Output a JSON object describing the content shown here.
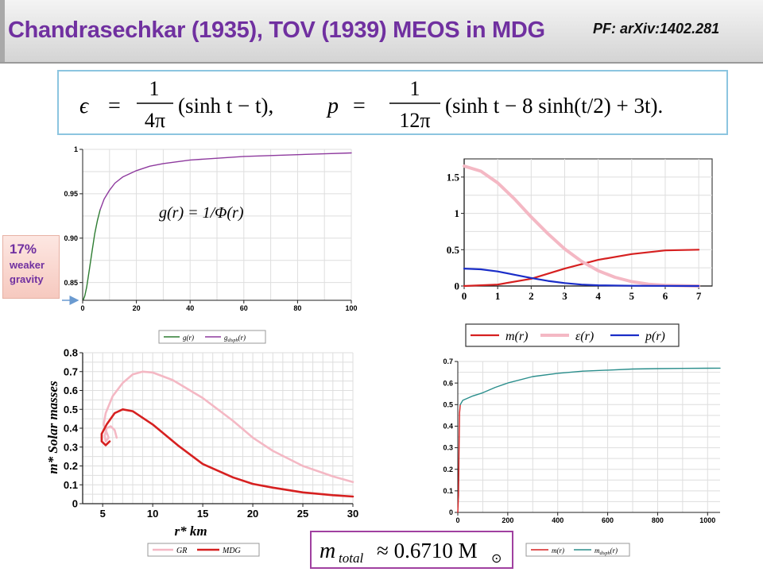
{
  "header": {
    "title": "Chandrasechkar (1935), TOV (1939) MEOS in MDG",
    "reference": "PF: arXiv:1402.281"
  },
  "equation": {
    "eps_sym": "ϵ",
    "eq": "=",
    "one": "1",
    "four_pi": "4π",
    "eps_rhs": "(sinh t − t),",
    "p_sym": "p",
    "twelve_pi": "12π",
    "p_rhs": "(sinh t − 8 sinh(t/2) + 3t)."
  },
  "mtotal": {
    "lhs": "m",
    "sub": "total",
    "rhs": "≈ 0.6710 M",
    "sun": "⊙"
  },
  "callout": {
    "percent": "17%",
    "line1": "weaker",
    "line2": "gravity"
  },
  "colors": {
    "title": "#7030a0",
    "gr_green": "#2e7d32",
    "g_purple": "#8e3a9e",
    "mass_red": "#d62020",
    "eps_pink": "#f4b8c4",
    "p_blue": "#1a2dc8",
    "teal": "#2a8e8c"
  },
  "chart_data": [
    {
      "type": "line",
      "id": "g-plot",
      "annotation": "g(r) = 1/Φ(r)",
      "xlim": [
        0,
        100
      ],
      "ylim": [
        0.83,
        1.0
      ],
      "x_ticks": [
        "0",
        "20",
        "40",
        "60",
        "80",
        "100"
      ],
      "y_ticks": [
        "0.85",
        "0.90",
        "0.95",
        "1"
      ],
      "legend": [
        "g(r)",
        "g_disph(r)"
      ],
      "series": [
        {
          "name": "g(r)",
          "points": [
            [
              0.3,
              0.831
            ],
            [
              0.8,
              0.835
            ],
            [
              1.5,
              0.845
            ],
            [
              2.5,
              0.865
            ],
            [
              3.5,
              0.885
            ],
            [
              4.5,
              0.905
            ],
            [
              5.5,
              0.92
            ],
            [
              6.5,
              0.932
            ]
          ]
        },
        {
          "name": "g_disph(r)",
          "points": [
            [
              6.5,
              0.932
            ],
            [
              8,
              0.944
            ],
            [
              10,
              0.954
            ],
            [
              12,
              0.962
            ],
            [
              15,
              0.969
            ],
            [
              20,
              0.976
            ],
            [
              25,
              0.981
            ],
            [
              30,
              0.984
            ],
            [
              40,
              0.988
            ],
            [
              50,
              0.99
            ],
            [
              60,
              0.992
            ],
            [
              70,
              0.993
            ],
            [
              80,
              0.994
            ],
            [
              90,
              0.995
            ],
            [
              100,
              0.996
            ]
          ]
        }
      ]
    },
    {
      "type": "line",
      "id": "profile-plot",
      "xlim": [
        0,
        7.4
      ],
      "ylim": [
        0,
        1.75
      ],
      "x_ticks": [
        "0",
        "1",
        "2",
        "3",
        "4",
        "5",
        "6",
        "7"
      ],
      "y_ticks": [
        "0",
        "0.5",
        "1",
        "1.5"
      ],
      "legend": [
        "m(r)",
        "ε(r)",
        "p(r)"
      ],
      "series": [
        {
          "name": "m(r)",
          "points": [
            [
              0,
              0
            ],
            [
              1,
              0.02
            ],
            [
              2,
              0.1
            ],
            [
              3,
              0.24
            ],
            [
              4,
              0.36
            ],
            [
              5,
              0.44
            ],
            [
              6,
              0.49
            ],
            [
              7,
              0.5
            ]
          ]
        },
        {
          "name": "ε(r)",
          "points": [
            [
              0,
              1.65
            ],
            [
              0.5,
              1.58
            ],
            [
              1,
              1.42
            ],
            [
              1.5,
              1.2
            ],
            [
              2,
              0.95
            ],
            [
              2.5,
              0.72
            ],
            [
              3,
              0.51
            ],
            [
              3.5,
              0.34
            ],
            [
              4,
              0.21
            ],
            [
              4.5,
              0.12
            ],
            [
              5,
              0.06
            ],
            [
              5.5,
              0.025
            ],
            [
              6,
              0.01
            ],
            [
              7,
              0
            ]
          ]
        },
        {
          "name": "p(r)",
          "points": [
            [
              0,
              0.24
            ],
            [
              0.5,
              0.23
            ],
            [
              1,
              0.2
            ],
            [
              1.5,
              0.155
            ],
            [
              2,
              0.11
            ],
            [
              2.5,
              0.07
            ],
            [
              3,
              0.04
            ],
            [
              3.5,
              0.02
            ],
            [
              4,
              0.01
            ],
            [
              5,
              0.003
            ],
            [
              7,
              0
            ]
          ]
        }
      ]
    },
    {
      "type": "line",
      "id": "mass-radius-plot",
      "xlabel": "r*   km",
      "ylabel": "m*  Solar masses",
      "xlim": [
        3,
        30
      ],
      "ylim": [
        0,
        0.8
      ],
      "x_ticks": [
        "5",
        "10",
        "15",
        "20",
        "25",
        "30"
      ],
      "y_ticks": [
        "0",
        "0.1",
        "0.2",
        "0.3",
        "0.4",
        "0.5",
        "0.6",
        "0.7",
        "0.8"
      ],
      "legend": [
        "GR",
        "MDG"
      ],
      "series": [
        {
          "name": "GR",
          "points": [
            [
              6.4,
              0.35
            ],
            [
              6.2,
              0.39
            ],
            [
              5.8,
              0.41
            ],
            [
              5.4,
              0.4
            ],
            [
              5.2,
              0.36
            ],
            [
              5.3,
              0.33
            ],
            [
              5.6,
              0.35
            ],
            [
              5.1,
              0.42
            ],
            [
              5.3,
              0.48
            ],
            [
              6,
              0.57
            ],
            [
              7,
              0.64
            ],
            [
              8,
              0.685
            ],
            [
              9,
              0.7
            ],
            [
              10,
              0.695
            ],
            [
              12,
              0.655
            ],
            [
              15,
              0.56
            ],
            [
              18,
              0.44
            ],
            [
              20,
              0.35
            ],
            [
              22,
              0.28
            ],
            [
              25,
              0.2
            ],
            [
              28,
              0.145
            ],
            [
              30,
              0.115
            ]
          ]
        },
        {
          "name": "MDG",
          "points": [
            [
              5.7,
              0.33
            ],
            [
              5.3,
              0.31
            ],
            [
              4.9,
              0.33
            ],
            [
              4.9,
              0.37
            ],
            [
              5.4,
              0.42
            ],
            [
              6.2,
              0.48
            ],
            [
              7,
              0.5
            ],
            [
              8,
              0.49
            ],
            [
              10,
              0.42
            ],
            [
              12.5,
              0.31
            ],
            [
              15,
              0.21
            ],
            [
              18,
              0.14
            ],
            [
              20,
              0.105
            ],
            [
              22,
              0.085
            ],
            [
              25,
              0.06
            ],
            [
              28,
              0.045
            ],
            [
              30,
              0.038
            ]
          ]
        }
      ]
    },
    {
      "type": "line",
      "id": "mass-plot",
      "xlim": [
        0,
        1050
      ],
      "ylim": [
        0,
        0.7
      ],
      "x_ticks": [
        "0",
        "200",
        "400",
        "600",
        "800",
        "1000"
      ],
      "y_ticks": [
        "0",
        "0.1",
        "0.2",
        "0.3",
        "0.4",
        "0.5",
        "0.6",
        "0.7"
      ],
      "legend": [
        "m(r)",
        "m_disph(r)"
      ],
      "series": [
        {
          "name": "m(r)",
          "points": [
            [
              0,
              0
            ],
            [
              3,
              0.08
            ],
            [
              5,
              0.3
            ],
            [
              7,
              0.46
            ],
            [
              10,
              0.5
            ]
          ]
        },
        {
          "name": "m_disph(r)",
          "points": [
            [
              10,
              0.5
            ],
            [
              20,
              0.52
            ],
            [
              60,
              0.54
            ],
            [
              100,
              0.555
            ],
            [
              150,
              0.58
            ],
            [
              200,
              0.6
            ],
            [
              300,
              0.63
            ],
            [
              400,
              0.645
            ],
            [
              500,
              0.655
            ],
            [
              600,
              0.66
            ],
            [
              700,
              0.665
            ],
            [
              800,
              0.667
            ],
            [
              900,
              0.668
            ],
            [
              1050,
              0.669
            ]
          ]
        }
      ]
    }
  ]
}
